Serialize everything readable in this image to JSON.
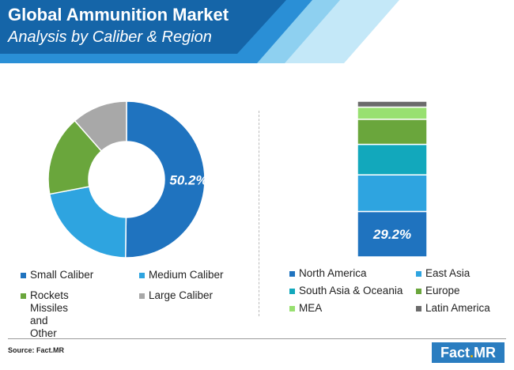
{
  "header": {
    "title": "Global Ammunition Market",
    "subtitle": "Analysis by Caliber & Region",
    "colors": {
      "dark": "#1565a8",
      "mid": "#2a8fd6",
      "light": "#8ed0f0",
      "pale": "#c4e8f8"
    }
  },
  "chart_data": [
    {
      "type": "pie",
      "style": "donut",
      "segments": [
        {
          "name": "Small Caliber",
          "value": 50.2,
          "color": "#1f73bf"
        },
        {
          "name": "Medium Caliber",
          "value": 21.8,
          "color": "#2ea4e0"
        },
        {
          "name": "Rockets\nMissiles and Other",
          "value": 16.5,
          "color": "#6aa63c"
        },
        {
          "name": "Large Caliber",
          "value": 11.5,
          "color": "#a8a8a8"
        }
      ],
      "data_labels": [
        {
          "segment": "Small Caliber",
          "text": "50.2%"
        }
      ],
      "legend_placement": "bottom"
    },
    {
      "type": "bar",
      "style": "stacked-100",
      "segments": [
        {
          "name": "North America",
          "value": 29.2,
          "color": "#1f73bf"
        },
        {
          "name": "East Asia",
          "value": 23.5,
          "color": "#2ea4e0"
        },
        {
          "name": "South Asia & Oceania",
          "value": 19.6,
          "color": "#12a8bc"
        },
        {
          "name": "Europe",
          "value": 16.1,
          "color": "#6aa63c"
        },
        {
          "name": "MEA",
          "value": 7.8,
          "color": "#98e070"
        },
        {
          "name": "Latin America",
          "value": 3.8,
          "color": "#6b6b6b"
        }
      ],
      "data_labels": [
        {
          "segment": "North America",
          "text": "29.2%"
        }
      ],
      "legend_placement": "bottom"
    }
  ],
  "footer": {
    "source": "Source: Fact.MR",
    "logo_main": "Fact",
    "logo_dot": ".",
    "logo_end": "MR"
  }
}
